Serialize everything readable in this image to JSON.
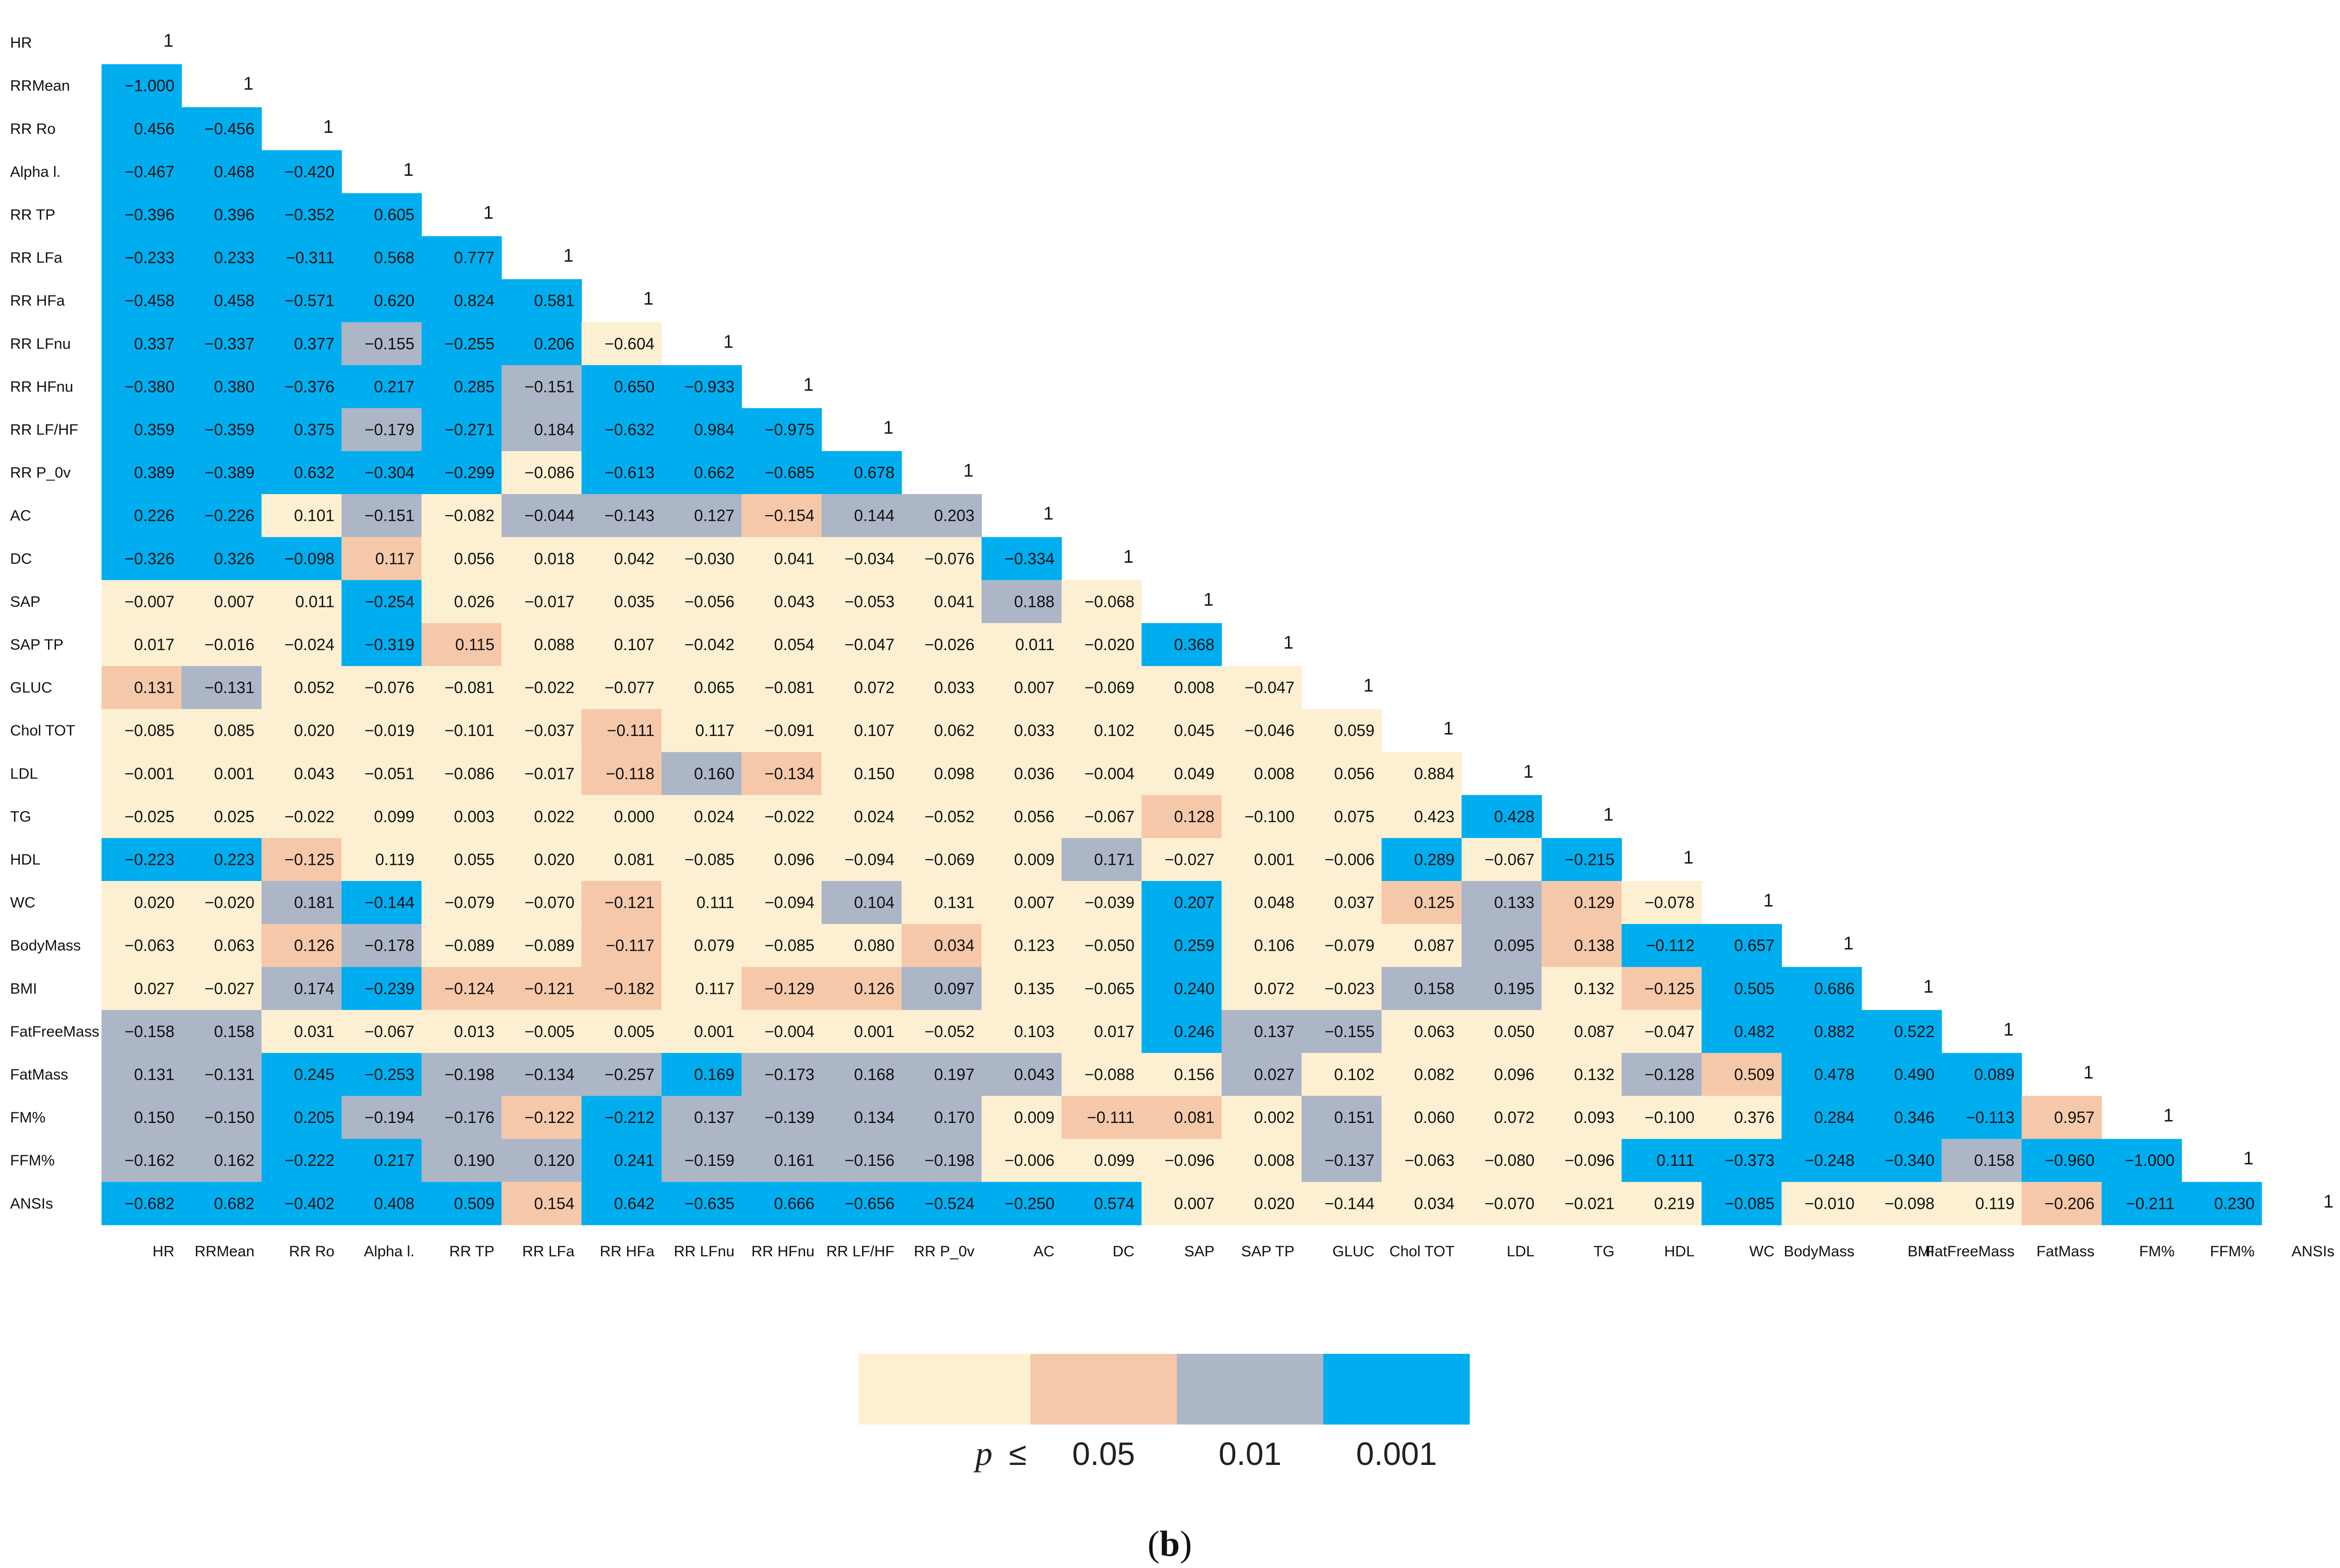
{
  "chart_data": {
    "type": "heatmap",
    "variables": [
      "HR",
      "RRMean",
      "RR Ro",
      "Alpha l.",
      "RR TP",
      "RR LFa",
      "RR HFa",
      "RR LFnu",
      "RR HFnu",
      "RR LF/HF",
      "RR P_0v",
      "AC",
      "DC",
      "SAP",
      "SAP TP",
      "GLUC",
      "Chol TOT",
      "LDL",
      "TG",
      "HDL",
      "WC",
      "BodyMass",
      "BMI",
      "FatFreeMass",
      "FatMass",
      "FM%",
      "FFM%",
      "ANSIs"
    ],
    "values": [
      [
        "1"
      ],
      [
        "−1.000",
        "1"
      ],
      [
        "0.456",
        "−0.456",
        "1"
      ],
      [
        "−0.467",
        "0.468",
        "−0.420",
        "1"
      ],
      [
        "−0.396",
        "0.396",
        "−0.352",
        "0.605",
        "1"
      ],
      [
        "−0.233",
        "0.233",
        "−0.311",
        "0.568",
        "0.777",
        "1"
      ],
      [
        "−0.458",
        "0.458",
        "−0.571",
        "0.620",
        "0.824",
        "0.581",
        "1"
      ],
      [
        "0.337",
        "−0.337",
        "0.377",
        "−0.155",
        "−0.255",
        "0.206",
        "−0.604",
        "1"
      ],
      [
        "−0.380",
        "0.380",
        "−0.376",
        "0.217",
        "0.285",
        "−0.151",
        "0.650",
        "−0.933",
        "1"
      ],
      [
        "0.359",
        "−0.359",
        "0.375",
        "−0.179",
        "−0.271",
        "0.184",
        "−0.632",
        "0.984",
        "−0.975",
        "1"
      ],
      [
        "0.389",
        "−0.389",
        "0.632",
        "−0.304",
        "−0.299",
        "−0.086",
        "−0.613",
        "0.662",
        "−0.685",
        "0.678",
        "1"
      ],
      [
        "0.226",
        "−0.226",
        "0.101",
        "−0.151",
        "−0.082",
        "−0.044",
        "−0.143",
        "0.127",
        "−0.154",
        "0.144",
        "0.203",
        "1"
      ],
      [
        "−0.326",
        "0.326",
        "−0.098",
        "0.117",
        "0.056",
        "0.018",
        "0.042",
        "−0.030",
        "0.041",
        "−0.034",
        "−0.076",
        "−0.334",
        "1"
      ],
      [
        "−0.007",
        "0.007",
        "0.011",
        "−0.254",
        "0.026",
        "−0.017",
        "0.035",
        "−0.056",
        "0.043",
        "−0.053",
        "0.041",
        "0.188",
        "−0.068",
        "1"
      ],
      [
        "0.017",
        "−0.016",
        "−0.024",
        "−0.319",
        "0.115",
        "0.088",
        "0.107",
        "−0.042",
        "0.054",
        "−0.047",
        "−0.026",
        "0.011",
        "−0.020",
        "0.368",
        "1"
      ],
      [
        "0.131",
        "−0.131",
        "0.052",
        "−0.076",
        "−0.081",
        "−0.022",
        "−0.077",
        "0.065",
        "−0.081",
        "0.072",
        "0.033",
        "0.007",
        "−0.069",
        "0.008",
        "−0.047",
        "1"
      ],
      [
        "−0.085",
        "0.085",
        "0.020",
        "−0.019",
        "−0.101",
        "−0.037",
        "−0.111",
        "0.117",
        "−0.091",
        "0.107",
        "0.062",
        "0.033",
        "0.102",
        "0.045",
        "−0.046",
        "0.059",
        "1"
      ],
      [
        "−0.001",
        "0.001",
        "0.043",
        "−0.051",
        "−0.086",
        "−0.017",
        "−0.118",
        "0.160",
        "−0.134",
        "0.150",
        "0.098",
        "0.036",
        "−0.004",
        "0.049",
        "0.008",
        "0.056",
        "0.884",
        "1"
      ],
      [
        "−0.025",
        "0.025",
        "−0.022",
        "0.099",
        "0.003",
        "0.022",
        "0.000",
        "0.024",
        "−0.022",
        "0.024",
        "−0.052",
        "0.056",
        "−0.067",
        "0.128",
        "−0.100",
        "0.075",
        "0.423",
        "0.428",
        "1"
      ],
      [
        "−0.223",
        "0.223",
        "−0.125",
        "0.119",
        "0.055",
        "0.020",
        "0.081",
        "−0.085",
        "0.096",
        "−0.094",
        "−0.069",
        "0.009",
        "0.171",
        "−0.027",
        "0.001",
        "−0.006",
        "0.289",
        "−0.067",
        "−0.215",
        "1"
      ],
      [
        "0.020",
        "−0.020",
        "0.181",
        "−0.144",
        "−0.079",
        "−0.070",
        "−0.121",
        "0.111",
        "−0.094",
        "0.104",
        "0.131",
        "0.007",
        "−0.039",
        "0.207",
        "0.048",
        "0.037",
        "0.125",
        "0.133",
        "0.129",
        "−0.078",
        "1"
      ],
      [
        "−0.063",
        "0.063",
        "0.126",
        "−0.178",
        "−0.089",
        "−0.089",
        "−0.117",
        "0.079",
        "−0.085",
        "0.080",
        "0.034",
        "0.123",
        "−0.050",
        "0.259",
        "0.106",
        "−0.079",
        "0.087",
        "0.095",
        "0.138",
        "−0.112",
        "0.657",
        "1"
      ],
      [
        "0.027",
        "−0.027",
        "0.174",
        "−0.239",
        "−0.124",
        "−0.121",
        "−0.182",
        "0.117",
        "−0.129",
        "0.126",
        "0.097",
        "0.135",
        "−0.065",
        "0.240",
        "0.072",
        "−0.023",
        "0.158",
        "0.195",
        "0.132",
        "−0.125",
        "0.505",
        "0.686",
        "1"
      ],
      [
        "−0.158",
        "0.158",
        "0.031",
        "−0.067",
        "0.013",
        "−0.005",
        "0.005",
        "0.001",
        "−0.004",
        "0.001",
        "−0.052",
        "0.103",
        "0.017",
        "0.246",
        "0.137",
        "−0.155",
        "0.063",
        "0.050",
        "0.087",
        "−0.047",
        "0.482",
        "0.882",
        "0.522",
        "1"
      ],
      [
        "0.131",
        "−0.131",
        "0.245",
        "−0.253",
        "−0.198",
        "−0.134",
        "−0.257",
        "0.169",
        "−0.173",
        "0.168",
        "0.197",
        "0.043",
        "−0.088",
        "0.156",
        "0.027",
        "0.102",
        "0.082",
        "0.096",
        "0.132",
        "−0.128",
        "0.509",
        "0.478",
        "0.490",
        "0.089",
        "1"
      ],
      [
        "0.150",
        "−0.150",
        "0.205",
        "−0.194",
        "−0.176",
        "−0.122",
        "−0.212",
        "0.137",
        "−0.139",
        "0.134",
        "0.170",
        "0.009",
        "−0.111",
        "0.081",
        "0.002",
        "0.151",
        "0.060",
        "0.072",
        "0.093",
        "−0.100",
        "0.376",
        "0.284",
        "0.346",
        "−0.113",
        "0.957",
        "1"
      ],
      [
        "−0.162",
        "0.162",
        "−0.222",
        "0.217",
        "0.190",
        "0.120",
        "0.241",
        "−0.159",
        "0.161",
        "−0.156",
        "−0.198",
        "−0.006",
        "0.099",
        "−0.096",
        "0.008",
        "−0.137",
        "−0.063",
        "−0.080",
        "−0.096",
        "0.111",
        "−0.373",
        "−0.248",
        "−0.340",
        "0.158",
        "−0.960",
        "−1.000",
        "1"
      ],
      [
        "−0.682",
        "0.682",
        "−0.402",
        "0.408",
        "0.509",
        "0.154",
        "0.642",
        "−0.635",
        "0.666",
        "−0.656",
        "−0.524",
        "−0.250",
        "0.574",
        "0.007",
        "0.020",
        "−0.144",
        "0.034",
        "−0.070",
        "−0.021",
        "0.219",
        "−0.085",
        "−0.010",
        "−0.098",
        "0.119",
        "−0.206",
        "−0.211",
        "0.230",
        "1"
      ]
    ],
    "significance": [
      "",
      "b",
      "bb",
      "bbb",
      "bbbb",
      "bbbbb",
      "bbbbbb",
      "bbbgbb",
      "bbbbbgbb",
      "bbbgbgbbb",
      "bbbbbybbbb",
      "bbygygggsgg",
      "bbbsyyyyyyybb",
      "yyybyyyyyyygy",
      "yyybsyyyyyyyyb",
      "sgyyyyyyyyyyyyy",
      "yyyyyysyyyyyyyyyb",
      "yyyyyysgsyyyyyyyyb",
      "yyyyyyyyyyyyysyyybb",
      "bbsyyyyyyyyygyyybyb",
      "yygbyysyygyyybyysgsy",
      "yysgyysyyysyybyyygsbb",
      "yygbsssyssgyybyyggysbbb",
      "ggyyyyyyyyyyybggyyyybbbb",
      "ggbbgggbggggyygyyyygsbbbb",
      "ggbggsbggggyssygyyyyybbbsb",
      "ggbbggbggggyyyygyyybbbbgbbb",
      "bbbbbsbbbbbbbyyyyyyybyyysbbb"
    ],
    "legend": {
      "colors": [
        "#fdf0d2",
        "#f6c8aa",
        "#adb6c6",
        "#00aeef"
      ],
      "p_label": "p",
      "le_symbol": "≤",
      "thresholds": [
        "0.05",
        "0.01",
        "0.001"
      ]
    }
  },
  "caption": {
    "open": "(",
    "letter": "b",
    "close": ")"
  }
}
